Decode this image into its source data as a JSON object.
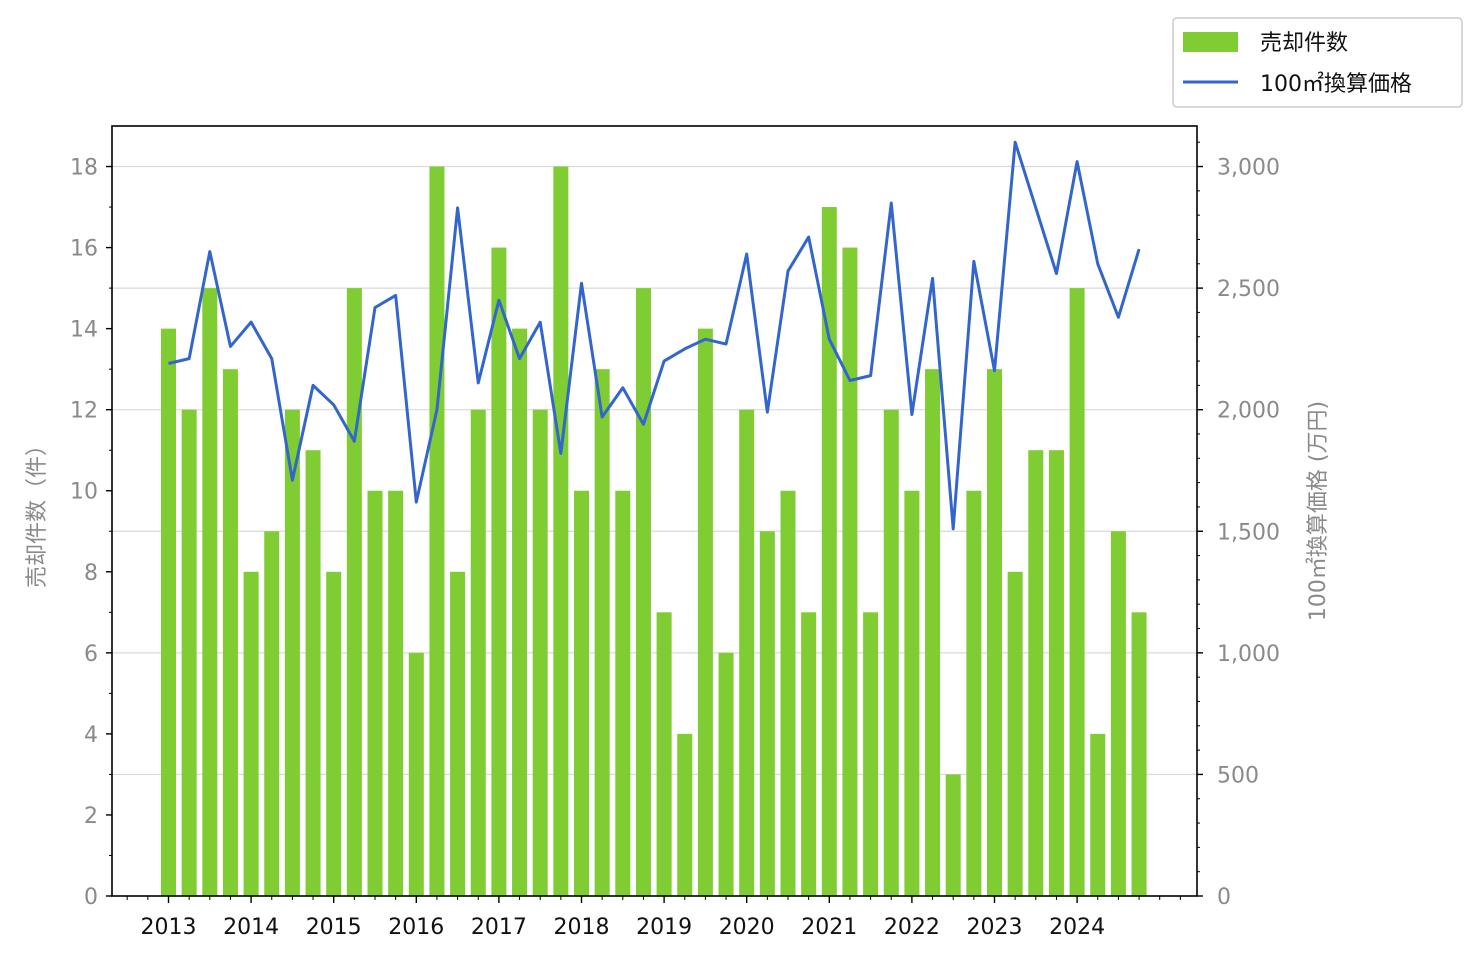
{
  "chart_data": {
    "type": "bar",
    "x_tick_labels": [
      "2013",
      "2014",
      "2015",
      "2016",
      "2017",
      "2018",
      "2019",
      "2020",
      "2021",
      "2022",
      "2023",
      "2024"
    ],
    "categories": [
      "2013Q1",
      "2013Q2",
      "2013Q3",
      "2013Q4",
      "2014Q1",
      "2014Q2",
      "2014Q3",
      "2014Q4",
      "2015Q1",
      "2015Q2",
      "2015Q3",
      "2015Q4",
      "2016Q1",
      "2016Q2",
      "2016Q3",
      "2016Q4",
      "2017Q1",
      "2017Q2",
      "2017Q3",
      "2017Q4",
      "2018Q1",
      "2018Q2",
      "2018Q3",
      "2018Q4",
      "2019Q1",
      "2019Q2",
      "2019Q3",
      "2019Q4",
      "2020Q1",
      "2020Q2",
      "2020Q3",
      "2020Q4",
      "2021Q1",
      "2021Q2",
      "2021Q3",
      "2021Q4",
      "2022Q1",
      "2022Q2",
      "2022Q3",
      "2022Q4",
      "2023Q1",
      "2023Q2",
      "2023Q3",
      "2023Q4",
      "2024Q1",
      "2024Q2",
      "2024Q3",
      "2024Q4"
    ],
    "series": [
      {
        "name": "売却件数",
        "type": "bar",
        "axis": "left",
        "color": "#7fcc33",
        "values": [
          14,
          12,
          15,
          13,
          8,
          9,
          12,
          11,
          8,
          15,
          10,
          10,
          6,
          18,
          8,
          12,
          16,
          14,
          12,
          18,
          10,
          13,
          10,
          15,
          7,
          4,
          14,
          6,
          12,
          9,
          10,
          7,
          17,
          16,
          7,
          12,
          10,
          13,
          3,
          10,
          13,
          8,
          11,
          11,
          15,
          4,
          9,
          7
        ]
      },
      {
        "name": "100㎡換算価格",
        "type": "line",
        "axis": "right",
        "color": "#3366cc",
        "values": [
          2190,
          2210,
          2650,
          2260,
          2360,
          2210,
          1710,
          2100,
          2020,
          1870,
          2420,
          2470,
          1620,
          2000,
          2830,
          2110,
          2450,
          2210,
          2360,
          1820,
          2520,
          1970,
          2090,
          1940,
          2200,
          2250,
          2290,
          2270,
          2640,
          1990,
          2570,
          2710,
          2290,
          2120,
          2140,
          2850,
          1980,
          2540,
          1510,
          2610,
          2160,
          3100,
          2830,
          2560,
          3020,
          2600,
          2380,
          2660
        ]
      }
    ],
    "ylabel_left": "売却件数（件）",
    "ylabel_right": "100㎡換算価格 (万円)",
    "ylim_left": [
      0,
      19
    ],
    "ylim_right": [
      0,
      3166.67
    ],
    "yticks_left": [
      "0",
      "2",
      "4",
      "6",
      "8",
      "10",
      "12",
      "14",
      "16",
      "18"
    ],
    "yticks_right": [
      "0",
      "500",
      "1,000",
      "1,500",
      "2,000",
      "2,500",
      "3,000"
    ],
    "grid": "horizontal (right axis)",
    "legend": {
      "position": "top-right",
      "items": [
        {
          "label": "売却件数",
          "kind": "bar",
          "color": "#7fcc33"
        },
        {
          "label": "100㎡換算価格",
          "kind": "line",
          "color": "#3366cc"
        }
      ]
    }
  }
}
